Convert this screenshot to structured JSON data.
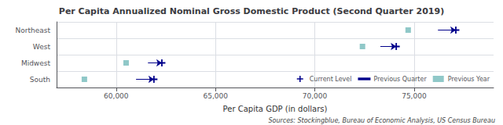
{
  "chart_data": {
    "type": "dot",
    "title": "Per Capita Annualized Nominal Gross Domestic Product (Second Quarter 2019)",
    "xlabel": "Per Capita GDP (in dollars)",
    "annotations": [
      "Sources: Stockingblue, Bureau of Economic Analysis, US Census Bureau"
    ],
    "orientation": "horizontal",
    "categories": [
      "Northeast",
      "West",
      "Midwest",
      "South"
    ],
    "series": [
      {
        "name": "Current Level",
        "type": "scatter",
        "marker": "plus",
        "color": "#00008B",
        "values": [
          77100,
          74100,
          62300,
          61900
        ]
      },
      {
        "name": "Previous Quarter",
        "type": "arrow",
        "line_style": "solid",
        "color": "#00008B",
        "values": [
          76200,
          73300,
          61600,
          61000
        ]
      },
      {
        "name": "Previous Year",
        "type": "scatter",
        "marker": "square",
        "color": "#90C8C8",
        "values": [
          74700,
          72400,
          60500,
          58400
        ]
      }
    ],
    "xlim": [
      57000,
      79000
    ],
    "xticks": [
      {
        "value": 60000,
        "label": "60,000"
      },
      {
        "value": 65000,
        "label": "65,000"
      },
      {
        "value": 70000,
        "label": "70,000"
      },
      {
        "value": 75000,
        "label": "75,000"
      }
    ],
    "grid": true,
    "legend": "lower right"
  }
}
